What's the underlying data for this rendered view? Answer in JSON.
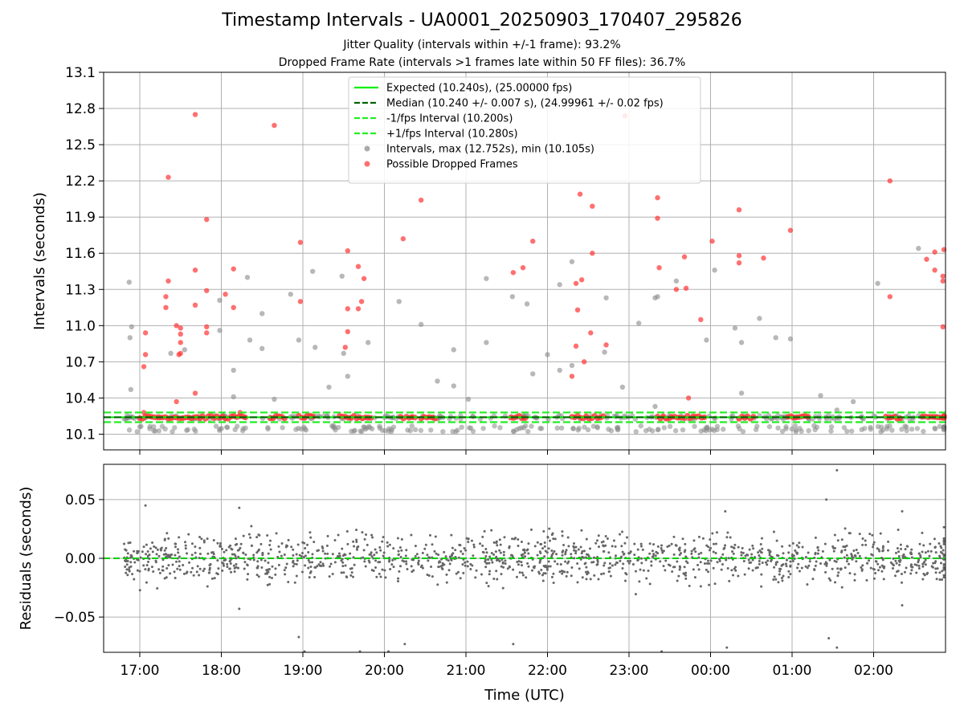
{
  "figure": {
    "title": "Timestamp Intervals - UA0001_20250903_170407_295826",
    "subtitle_1": "Jitter Quality (intervals within +/-1 frame): 93.2%",
    "subtitle_2": "Dropped Frame Rate (intervals >1 frames late within 50 FF files): 36.7%"
  },
  "chart_data": [
    {
      "type": "scatter",
      "panel": "intervals",
      "ylabel": "Intervals (seconds)",
      "xlabel": "",
      "x_unit": "hours since 17:00 UTC on time axis",
      "xlim_labels": [
        "17:00",
        "02:00"
      ],
      "xticks": [
        "17:00",
        "18:00",
        "19:00",
        "20:00",
        "21:00",
        "22:00",
        "23:00",
        "00:00",
        "01:00",
        "02:00"
      ],
      "ylim": [
        9.97,
        13.1
      ],
      "yticks": [
        "10.1",
        "10.4",
        "10.7",
        "11.0",
        "11.3",
        "11.6",
        "11.9",
        "12.2",
        "12.5",
        "12.8",
        "13.1"
      ],
      "grid": true,
      "legend_position": "top-center",
      "reference_lines": [
        {
          "name": "Expected (10.240s), (25.00000 fps)",
          "y": 10.24,
          "color": "#00ee00",
          "style": "solid"
        },
        {
          "name": "Median (10.240 +/- 0.007 s), (24.99961 +/- 0.02 fps)",
          "y": 10.24,
          "color": "#006400",
          "style": "dashed"
        },
        {
          "name": "-1/fps Interval (10.200s)",
          "y": 10.2,
          "color": "#22ee22",
          "style": "dashed"
        },
        {
          "name": "+1/fps Interval (10.280s)",
          "y": 10.28,
          "color": "#22ee22",
          "style": "dashed"
        }
      ],
      "series": [
        {
          "name": "Intervals, max (12.752s), min (10.105s)",
          "color": "#888888",
          "points": [
            [
              -0.13,
              11.36
            ],
            [
              -0.1,
              10.99
            ],
            [
              -0.12,
              10.9
            ],
            [
              -0.11,
              10.47
            ],
            [
              0.38,
              10.77
            ],
            [
              0.55,
              10.8
            ],
            [
              0.98,
              11.21
            ],
            [
              0.98,
              10.96
            ],
            [
              1.15,
              10.63
            ],
            [
              1.15,
              10.41
            ],
            [
              1.32,
              11.4
            ],
            [
              1.35,
              10.88
            ],
            [
              1.5,
              11.1
            ],
            [
              1.5,
              10.81
            ],
            [
              1.65,
              10.39
            ],
            [
              1.85,
              11.26
            ],
            [
              1.95,
              10.88
            ],
            [
              2.12,
              11.45
            ],
            [
              2.15,
              10.82
            ],
            [
              2.32,
              10.49
            ],
            [
              2.48,
              11.41
            ],
            [
              2.5,
              10.77
            ],
            [
              2.55,
              10.58
            ],
            [
              2.8,
              10.86
            ],
            [
              3.18,
              11.2
            ],
            [
              3.45,
              11.01
            ],
            [
              3.65,
              10.54
            ],
            [
              3.85,
              10.8
            ],
            [
              3.85,
              10.5
            ],
            [
              4.03,
              10.39
            ],
            [
              4.25,
              11.39
            ],
            [
              4.25,
              10.86
            ],
            [
              4.57,
              11.24
            ],
            [
              4.75,
              11.18
            ],
            [
              4.82,
              10.6
            ],
            [
              5.0,
              10.76
            ],
            [
              5.15,
              11.34
            ],
            [
              5.15,
              10.63
            ],
            [
              5.3,
              11.53
            ],
            [
              5.3,
              10.67
            ],
            [
              5.7,
              10.78
            ],
            [
              5.72,
              11.23
            ],
            [
              5.92,
              10.49
            ],
            [
              6.12,
              11.02
            ],
            [
              6.32,
              11.23
            ],
            [
              6.35,
              11.24
            ],
            [
              6.32,
              10.33
            ],
            [
              6.58,
              11.37
            ],
            [
              6.95,
              10.88
            ],
            [
              7.05,
              11.46
            ],
            [
              7.3,
              10.98
            ],
            [
              7.38,
              10.44
            ],
            [
              7.38,
              10.86
            ],
            [
              7.6,
              11.06
            ],
            [
              7.8,
              10.9
            ],
            [
              7.98,
              10.89
            ],
            [
              8.35,
              10.42
            ],
            [
              8.55,
              10.3
            ],
            [
              8.75,
              10.37
            ],
            [
              9.05,
              11.35
            ],
            [
              9.55,
              11.64
            ],
            [
              9.6,
              10.25
            ]
          ]
        },
        {
          "name": "Possible Dropped Frames",
          "color": "#ff3333",
          "points": [
            [
              0.07,
              10.94
            ],
            [
              0.07,
              10.76
            ],
            [
              0.05,
              10.66
            ],
            [
              0.05,
              10.28
            ],
            [
              0.35,
              12.23
            ],
            [
              0.35,
              11.37
            ],
            [
              0.32,
              11.24
            ],
            [
              0.32,
              11.15
            ],
            [
              0.45,
              11.0
            ],
            [
              0.5,
              10.98
            ],
            [
              0.5,
              10.93
            ],
            [
              0.5,
              10.86
            ],
            [
              0.5,
              10.77
            ],
            [
              0.48,
              10.76
            ],
            [
              0.45,
              10.37
            ],
            [
              0.68,
              12.75
            ],
            [
              0.68,
              11.46
            ],
            [
              0.68,
              11.17
            ],
            [
              0.68,
              10.44
            ],
            [
              0.82,
              11.88
            ],
            [
              0.82,
              11.29
            ],
            [
              0.82,
              10.99
            ],
            [
              0.82,
              10.94
            ],
            [
              1.05,
              11.26
            ],
            [
              1.15,
              11.47
            ],
            [
              1.15,
              11.15
            ],
            [
              1.23,
              10.28
            ],
            [
              1.65,
              12.66
            ],
            [
              1.97,
              11.69
            ],
            [
              1.97,
              11.2
            ],
            [
              2.55,
              11.62
            ],
            [
              2.55,
              11.14
            ],
            [
              2.55,
              10.95
            ],
            [
              2.52,
              10.82
            ],
            [
              2.68,
              11.49
            ],
            [
              2.68,
              11.14
            ],
            [
              2.75,
              11.39
            ],
            [
              2.72,
              11.2
            ],
            [
              3.23,
              11.72
            ],
            [
              3.45,
              12.04
            ],
            [
              4.58,
              11.44
            ],
            [
              4.7,
              11.48
            ],
            [
              4.82,
              11.7
            ],
            [
              5.4,
              12.09
            ],
            [
              5.42,
              11.38
            ],
            [
              5.35,
              11.35
            ],
            [
              5.37,
              11.13
            ],
            [
              5.35,
              10.83
            ],
            [
              5.45,
              10.7
            ],
            [
              5.3,
              10.58
            ],
            [
              5.55,
              11.99
            ],
            [
              5.55,
              11.6
            ],
            [
              5.53,
              10.94
            ],
            [
              5.72,
              10.84
            ],
            [
              5.95,
              12.74
            ],
            [
              6.35,
              12.06
            ],
            [
              6.35,
              11.89
            ],
            [
              6.37,
              11.48
            ],
            [
              6.58,
              11.3
            ],
            [
              6.68,
              11.57
            ],
            [
              6.7,
              11.31
            ],
            [
              6.73,
              10.4
            ],
            [
              6.88,
              11.05
            ],
            [
              7.02,
              11.7
            ],
            [
              7.35,
              11.96
            ],
            [
              7.35,
              11.58
            ],
            [
              7.35,
              11.52
            ],
            [
              7.65,
              11.56
            ],
            [
              7.98,
              11.79
            ],
            [
              9.2,
              12.2
            ],
            [
              9.2,
              11.24
            ],
            [
              9.65,
              11.55
            ],
            [
              9.75,
              11.61
            ],
            [
              9.75,
              11.46
            ],
            [
              9.85,
              11.41
            ],
            [
              9.85,
              11.37
            ],
            [
              9.85,
              10.99
            ],
            [
              10.02,
              11.63
            ]
          ]
        }
      ]
    },
    {
      "type": "scatter",
      "panel": "residuals",
      "ylabel": "Residuals (seconds)",
      "xlabel": "Time (UTC)",
      "xticks": [
        "17:00",
        "18:00",
        "19:00",
        "20:00",
        "21:00",
        "22:00",
        "23:00",
        "00:00",
        "01:00",
        "02:00"
      ],
      "ylim": [
        -0.08,
        0.08
      ],
      "yticks": [
        "−0.05",
        "0.00",
        "0.05"
      ],
      "grid": true,
      "reference_lines": [
        {
          "y": 0.0,
          "color": "#00cc00",
          "style": "dashed"
        }
      ],
      "series": [
        {
          "color": "#666666",
          "spread": 0.01,
          "x_range": [
            -0.2,
            10.05
          ],
          "outliers": [
            [
              0.07,
              0.045
            ],
            [
              1.22,
              0.043
            ],
            [
              1.22,
              -0.043
            ],
            [
              1.95,
              -0.067
            ],
            [
              2.02,
              -0.083
            ],
            [
              2.7,
              -0.081
            ],
            [
              3.05,
              -0.081
            ],
            [
              3.25,
              -0.073
            ],
            [
              4.58,
              -0.073
            ],
            [
              6.4,
              -0.081
            ],
            [
              7.2,
              -0.076
            ],
            [
              7.18,
              0.04
            ],
            [
              8.45,
              -0.068
            ],
            [
              8.55,
              -0.076
            ],
            [
              8.42,
              0.05
            ],
            [
              8.55,
              0.075
            ],
            [
              9.35,
              0.04
            ],
            [
              9.35,
              -0.04
            ]
          ]
        }
      ]
    }
  ],
  "legend": {
    "entries": [
      {
        "label": "Expected (10.240s), (25.00000 fps)",
        "marker": "solid-line",
        "color": "#00ee00"
      },
      {
        "label": "Median (10.240 +/- 0.007 s), (24.99961 +/- 0.02 fps)",
        "marker": "dashed-line",
        "color": "#006400"
      },
      {
        "label": "-1/fps Interval (10.200s)",
        "marker": "dashed-line",
        "color": "#22ee22"
      },
      {
        "label": "+1/fps Interval (10.280s)",
        "marker": "dashed-line",
        "color": "#22ee22"
      },
      {
        "label": "Intervals, max (12.752s), min (10.105s)",
        "marker": "dot",
        "color": "#888888"
      },
      {
        "label": "Possible Dropped Frames",
        "marker": "dot",
        "color": "#ff3333"
      }
    ]
  }
}
